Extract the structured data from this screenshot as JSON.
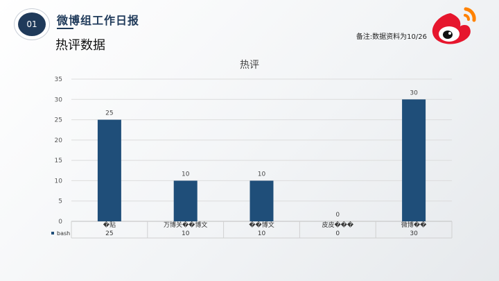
{
  "header": {
    "badge": "01",
    "title": "微博组工作日报",
    "subtitle": "热评数据",
    "note": "备注:数据资料为10/26"
  },
  "icons": {
    "logo": "weibo-logo-icon"
  },
  "colors": {
    "bar": "#1f4e79",
    "accent": "#1f3a5a",
    "logo_red": "#e6162d",
    "logo_orange": "#ff8200"
  },
  "chart_data": {
    "type": "bar",
    "title": "热评",
    "categories": [
      "�贴",
      "万博关��博文",
      "��博文",
      "皮皮���",
      "微博��"
    ],
    "series": [
      {
        "name": "bash",
        "values": [
          25,
          10,
          10,
          0,
          30
        ]
      }
    ],
    "ylim": [
      0,
      35
    ],
    "yticks": [
      0,
      5,
      10,
      15,
      20,
      25,
      30,
      35
    ],
    "grid": true,
    "legend": "bottom-left",
    "data_table": true
  }
}
